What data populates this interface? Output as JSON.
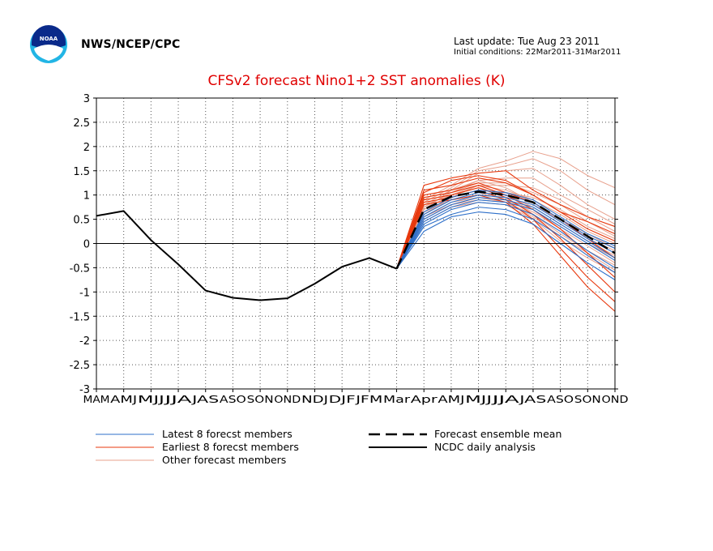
{
  "header": {
    "agency": "NWS/NCEP/CPC",
    "last_update": "Last update: Tue Aug 23 2011",
    "initial_conditions": "Initial conditions: 22Mar2011-31Mar2011",
    "logo_text": "NOAA"
  },
  "colors": {
    "latest": "#2d6fc9",
    "earliest": "#e8380d",
    "other": "#e8a08c",
    "mean": "#000000",
    "analysis": "#000000",
    "title": "#e00000"
  },
  "chart_data": {
    "type": "line",
    "title": "CFSv2 forecast Nino1+2 SST anomalies (K)",
    "xlabel": "",
    "ylabel": "",
    "categories": [
      "MAM",
      "AMJ",
      "MJJ",
      "JJA",
      "JAS",
      "ASO",
      "SON",
      "OND",
      "NDJ",
      "DJF",
      "JFM",
      "Mar",
      "Apr",
      "AMJ",
      "MJJ",
      "JJA",
      "JAS",
      "ASO",
      "SON",
      "OND"
    ],
    "ylim": [
      -3,
      3
    ],
    "yticks": [
      "3",
      "2.5",
      "2",
      "1.5",
      "1",
      "0.5",
      "0",
      "-0.5",
      "-1",
      "-1.5",
      "-2",
      "-2.5",
      "-3"
    ],
    "grid": true,
    "analysis": {
      "name": "NCDC daily analysis",
      "values": [
        0.57,
        0.67,
        0.07,
        -0.43,
        -0.97,
        -1.12,
        -1.17,
        -1.13,
        -0.83,
        -0.48,
        -0.3,
        -0.52
      ]
    },
    "ensemble_mean": {
      "name": "Forecast ensemble mean",
      "start_index": 11,
      "values": [
        -0.52,
        0.7,
        0.97,
        1.07,
        1.0,
        0.85,
        0.5,
        0.15,
        -0.2
      ]
    },
    "member_groups": [
      {
        "name": "Latest 8 forecst members",
        "color_key": "latest",
        "start_index": 11,
        "members": [
          [
            -0.52,
            0.25,
            0.55,
            0.65,
            0.6,
            0.4,
            0.0,
            -0.4,
            -0.75
          ],
          [
            -0.52,
            0.35,
            0.6,
            0.75,
            0.7,
            0.5,
            0.15,
            -0.25,
            -0.6
          ],
          [
            -0.52,
            0.4,
            0.7,
            0.85,
            0.8,
            0.6,
            0.25,
            -0.15,
            -0.5
          ],
          [
            -0.52,
            0.45,
            0.75,
            0.9,
            0.85,
            0.7,
            0.35,
            0.0,
            -0.35
          ],
          [
            -0.52,
            0.5,
            0.8,
            0.95,
            0.9,
            0.75,
            0.4,
            0.05,
            -0.3
          ],
          [
            -0.52,
            0.55,
            0.85,
            1.0,
            0.95,
            0.8,
            0.45,
            0.1,
            -0.2
          ],
          [
            -0.52,
            0.6,
            0.9,
            1.05,
            1.0,
            0.85,
            0.5,
            0.15,
            -0.1
          ],
          [
            -0.52,
            0.65,
            0.95,
            1.1,
            1.05,
            0.9,
            0.55,
            0.2,
            -0.05
          ]
        ]
      },
      {
        "name": "Earliest 8 forecst members",
        "color_key": "earliest",
        "start_index": 11,
        "members": [
          [
            -0.52,
            1.2,
            1.35,
            1.45,
            1.5,
            1.1,
            0.8,
            0.55,
            0.35
          ],
          [
            -0.52,
            1.1,
            1.2,
            1.35,
            1.25,
            1.0,
            0.65,
            0.3,
            0.05
          ],
          [
            -0.52,
            1.0,
            1.1,
            1.25,
            1.05,
            0.85,
            0.5,
            0.1,
            -0.3
          ],
          [
            -0.52,
            0.95,
            1.05,
            1.2,
            1.0,
            0.7,
            0.3,
            -0.2,
            -0.7
          ],
          [
            -0.52,
            0.9,
            1.0,
            1.15,
            0.95,
            0.6,
            0.1,
            -0.45,
            -1.0
          ],
          [
            -0.52,
            0.85,
            0.95,
            1.1,
            0.9,
            0.5,
            -0.1,
            -0.7,
            -1.2
          ],
          [
            -0.52,
            0.8,
            0.9,
            1.0,
            0.85,
            0.4,
            -0.25,
            -0.9,
            -1.4
          ],
          [
            -0.52,
            1.05,
            1.3,
            1.4,
            1.3,
            1.0,
            0.65,
            0.45,
            0.2
          ]
        ]
      },
      {
        "name": "Other forecast members",
        "color_key": "other",
        "start_index": 11,
        "members": [
          [
            -0.52,
            0.9,
            1.2,
            1.55,
            1.7,
            1.9,
            1.75,
            1.4,
            1.15
          ],
          [
            -0.52,
            0.85,
            1.15,
            1.5,
            1.6,
            1.75,
            1.5,
            1.1,
            0.8
          ],
          [
            -0.52,
            0.8,
            1.1,
            1.45,
            1.5,
            1.55,
            1.2,
            0.8,
            0.5
          ],
          [
            -0.52,
            0.75,
            1.05,
            1.3,
            1.35,
            1.35,
            1.0,
            0.7,
            0.4
          ],
          [
            -0.52,
            0.7,
            1.0,
            1.2,
            1.2,
            1.15,
            0.9,
            0.55,
            0.25
          ],
          [
            -0.52,
            0.65,
            0.95,
            1.1,
            1.05,
            0.95,
            0.7,
            0.35,
            0.1
          ],
          [
            -0.52,
            0.6,
            0.9,
            1.0,
            0.95,
            0.8,
            0.5,
            0.2,
            -0.1
          ],
          [
            -0.52,
            0.55,
            0.85,
            0.95,
            0.9,
            0.7,
            0.35,
            0.0,
            -0.3
          ],
          [
            -0.52,
            0.5,
            0.8,
            0.9,
            0.85,
            0.6,
            0.2,
            -0.15,
            -0.45
          ],
          [
            -0.52,
            0.45,
            0.75,
            0.85,
            0.8,
            0.5,
            0.05,
            -0.3,
            -0.6
          ],
          [
            -0.52,
            0.7,
            1.1,
            1.3,
            1.15,
            0.85,
            0.45,
            0.1,
            -0.15
          ],
          [
            -0.52,
            0.8,
            1.0,
            1.15,
            1.0,
            0.75,
            0.4,
            0.05,
            -0.25
          ],
          [
            -0.52,
            0.6,
            0.95,
            1.2,
            1.1,
            0.9,
            0.6,
            0.25,
            0.0
          ],
          [
            -0.52,
            0.75,
            1.05,
            1.25,
            1.25,
            1.05,
            0.8,
            0.45,
            0.15
          ],
          [
            -0.52,
            0.65,
            0.9,
            1.05,
            0.9,
            0.65,
            0.3,
            -0.05,
            -0.4
          ],
          [
            -0.52,
            0.55,
            0.8,
            0.95,
            0.85,
            0.55,
            0.15,
            -0.2,
            -0.55
          ]
        ]
      }
    ]
  },
  "legend": {
    "latest": "Latest 8 forecst members",
    "earliest": "Earliest 8 forecst members",
    "other": "Other forecast members",
    "mean": "Forecast ensemble mean",
    "analysis": "NCDC daily analysis"
  }
}
